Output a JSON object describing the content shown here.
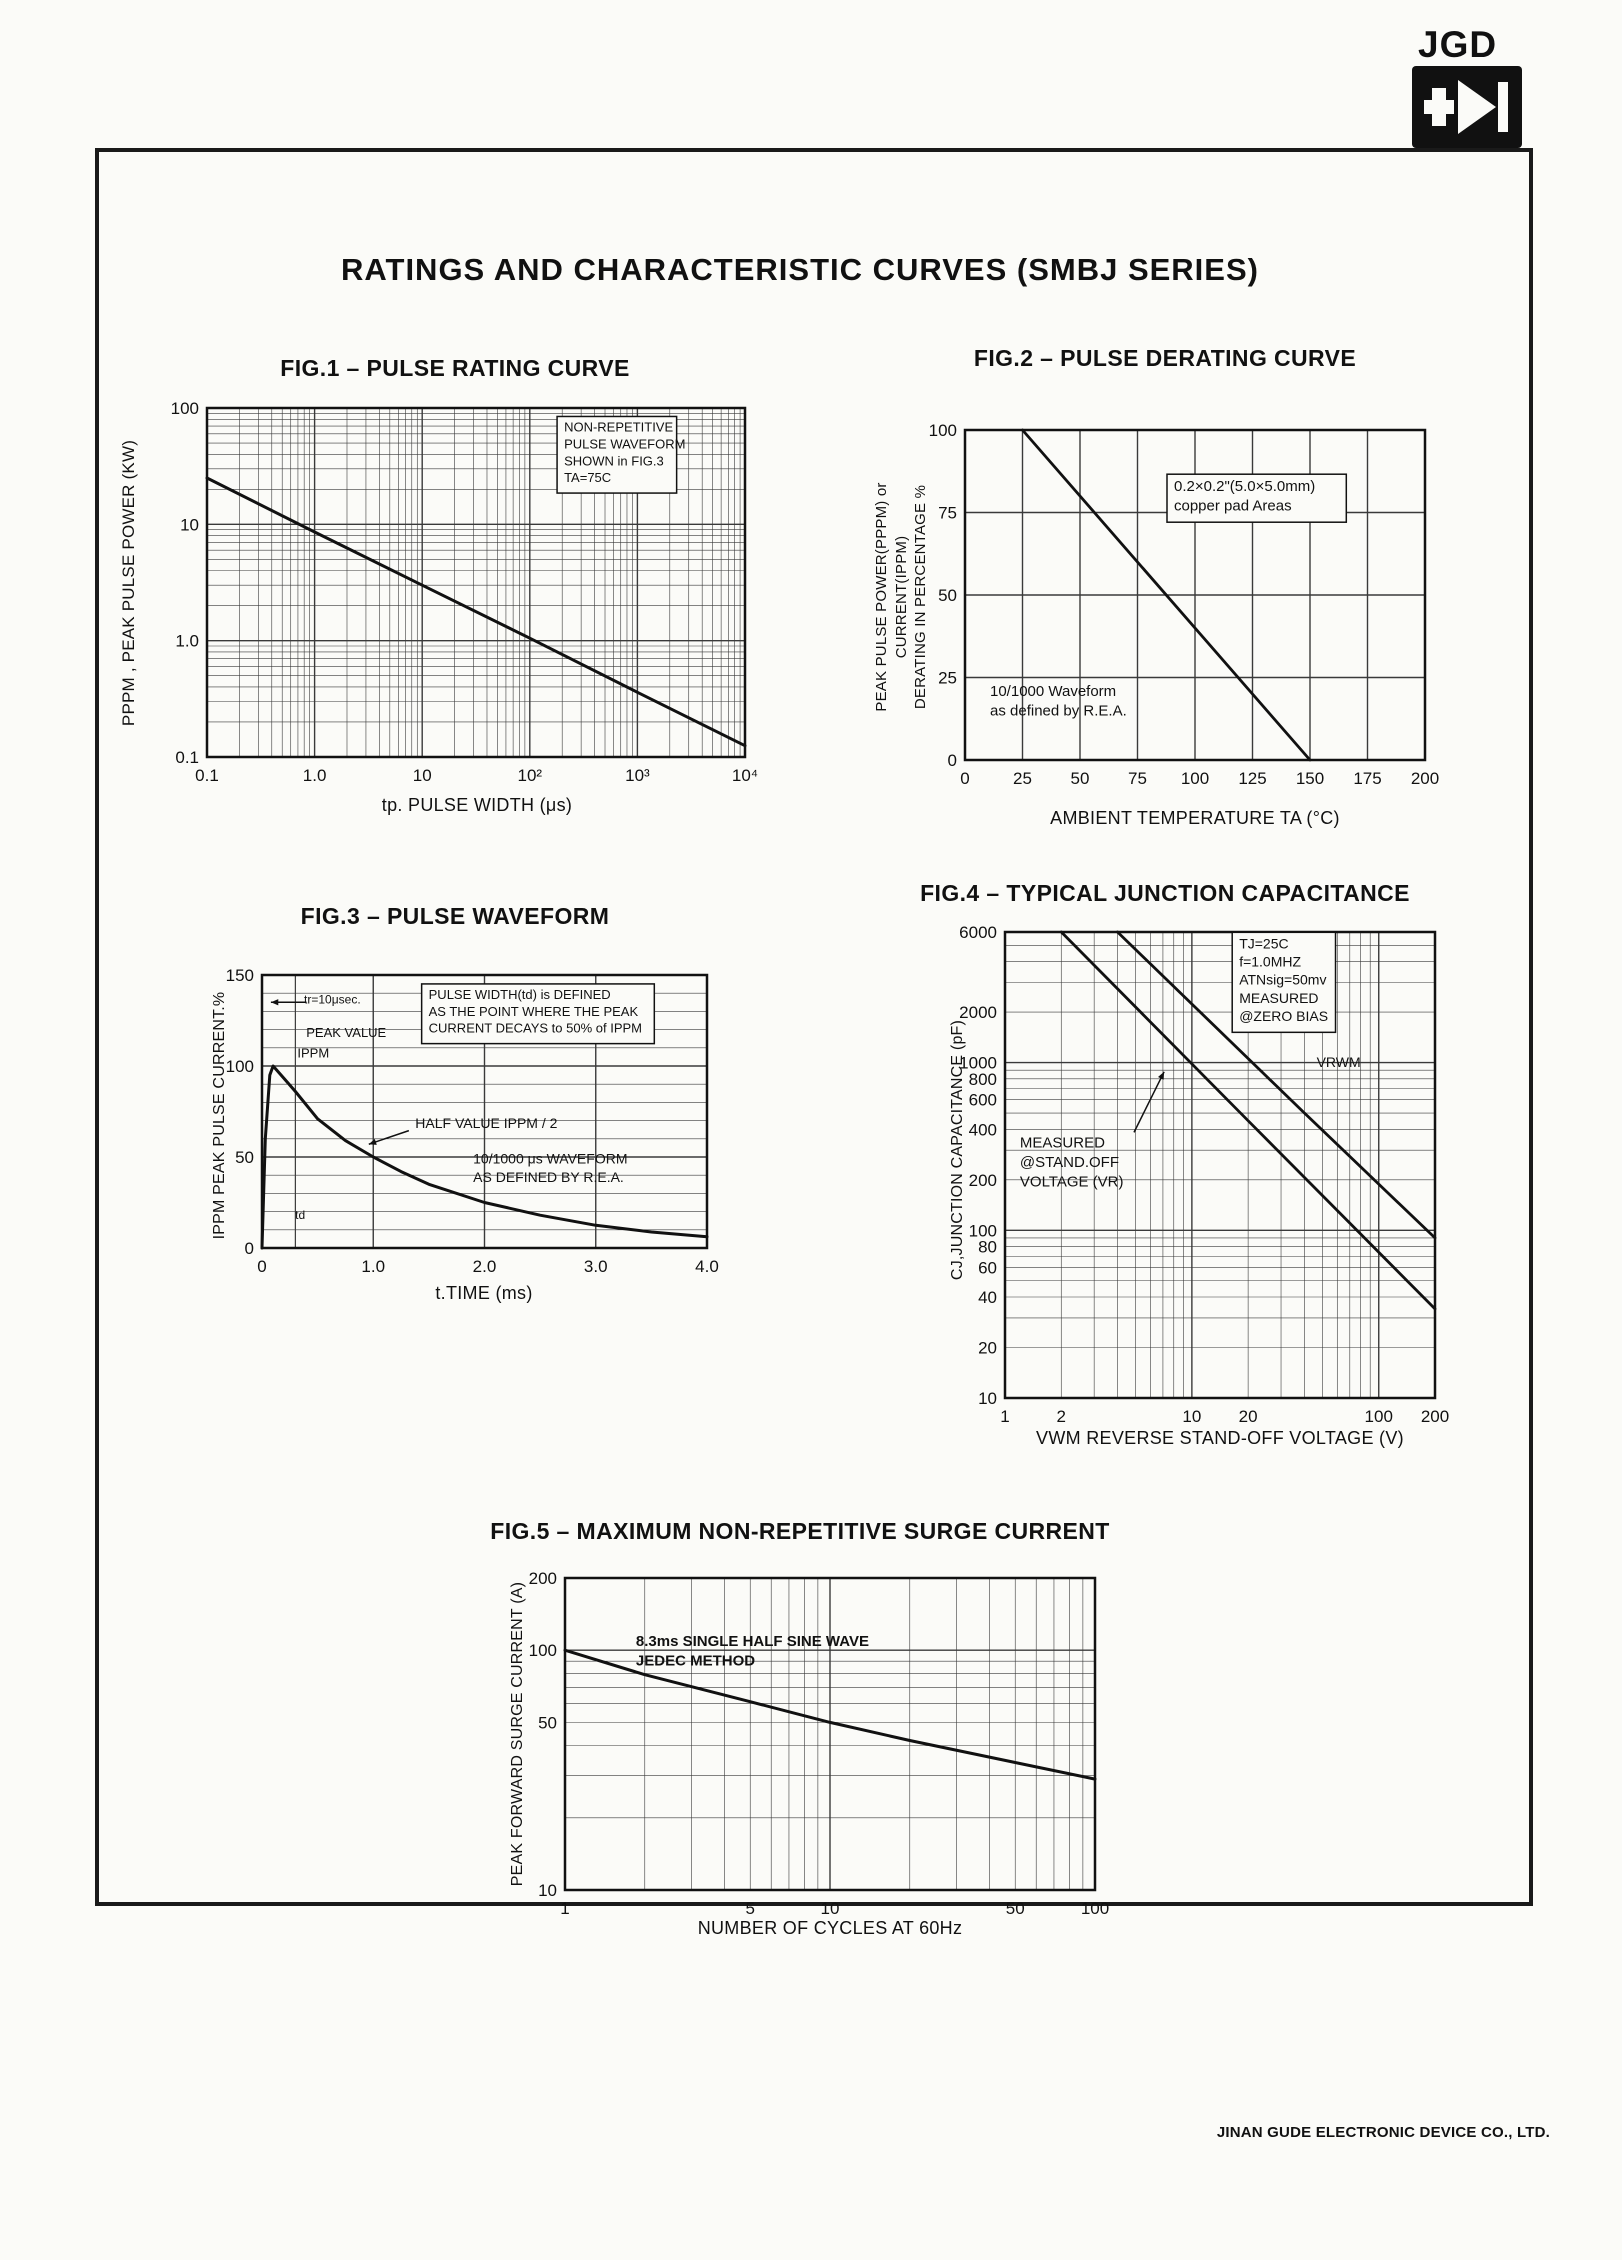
{
  "page": {
    "logo_text": "JGD",
    "title": "RATINGS AND CHARACTERISTIC CURVES (SMBJ SERIES)",
    "footer": "JINAN GUDE ELECTRONIC DEVICE CO., LTD."
  },
  "chart_data": [
    {
      "id": "fig1",
      "type": "line",
      "title": "FIG.1 – PULSE RATING CURVE",
      "xlabel": "tp. PULSE WIDTH (μs)",
      "ylabel": "PPPM , PEAK PULSE POWER (KW)",
      "xscale": "log",
      "xlim": [
        0.1,
        10000
      ],
      "yscale": "log",
      "ylim": [
        0.1,
        100
      ],
      "xticks": [
        {
          "v": 0.1,
          "label": "0.1"
        },
        {
          "v": 1,
          "label": "1.0"
        },
        {
          "v": 10,
          "label": "10"
        },
        {
          "v": 100,
          "label": "10²"
        },
        {
          "v": 1000,
          "label": "10³"
        },
        {
          "v": 10000,
          "label": "10⁴"
        }
      ],
      "yticks": [
        {
          "v": 100,
          "label": "100"
        },
        {
          "v": 10,
          "label": "10"
        },
        {
          "v": 1,
          "label": "1.0"
        },
        {
          "v": 0.1,
          "label": "0.1"
        }
      ],
      "series": [
        {
          "name": "non-repetitive pulse rating",
          "points": [
            [
              0.1,
              25
            ],
            [
              1,
              8.6
            ],
            [
              10,
              3.0
            ],
            [
              100,
              1.05
            ],
            [
              1000,
              0.36
            ],
            [
              10000,
              0.125
            ]
          ],
          "width": 3
        }
      ],
      "annotations": [
        {
          "lines": [
            "NON-REPETITIVE",
            "PULSE WAVEFORM",
            "SHOWN in FIG.3",
            "TA=75C"
          ],
          "x": 0.66,
          "y": 0.03,
          "box": true,
          "size": 13
        }
      ]
    },
    {
      "id": "fig2",
      "type": "line",
      "title": "FIG.2 – PULSE DERATING CURVE",
      "xlabel": "AMBIENT TEMPERATURE TA (°C)",
      "ylabel": "PEAK PULSE POWER(PPPM) or CURRENT(IPPM)\nDERATING IN PERCENTAGE %",
      "xscale": "linear",
      "xlim": [
        0,
        200
      ],
      "xgrid": 25,
      "yscale": "linear",
      "ylim": [
        0,
        100
      ],
      "ygrid": 25,
      "xticks": [
        {
          "v": 0,
          "label": "0"
        },
        {
          "v": 25,
          "label": "25"
        },
        {
          "v": 50,
          "label": "50"
        },
        {
          "v": 75,
          "label": "75"
        },
        {
          "v": 100,
          "label": "100"
        },
        {
          "v": 125,
          "label": "125"
        },
        {
          "v": 150,
          "label": "150"
        },
        {
          "v": 175,
          "label": "175"
        },
        {
          "v": 200,
          "label": "200"
        }
      ],
      "yticks": [
        {
          "v": 100,
          "label": "100"
        },
        {
          "v": 75,
          "label": "75"
        },
        {
          "v": 50,
          "label": "50"
        },
        {
          "v": 25,
          "label": "25"
        },
        {
          "v": 0,
          "label": "0"
        }
      ],
      "series": [
        {
          "name": "derating",
          "points": [
            [
              25,
              100
            ],
            [
              150,
              0
            ]
          ],
          "width": 2.8
        }
      ],
      "annotations": [
        {
          "lines": [
            "0.2×0.2\"(5.0×5.0mm)",
            "copper pad Areas"
          ],
          "x": 0.45,
          "y": 0.14,
          "box": true,
          "size": 15
        },
        {
          "lines": [
            "10/1000 Waveform",
            "as defined by R.E.A."
          ],
          "x": 0.05,
          "y": 0.76,
          "box": false,
          "size": 15
        }
      ]
    },
    {
      "id": "fig3",
      "type": "line",
      "title": "FIG.3 – PULSE WAVEFORM",
      "xlabel": "t.TIME (ms)",
      "ylabel": "IPPM PEAK PULSE CURRENT.%",
      "xscale": "linear",
      "xlim": [
        0,
        4
      ],
      "xgrid": null,
      "yscale": "linear",
      "ylim": [
        0,
        150
      ],
      "ygrid": 10,
      "vlines": [
        0.3
      ],
      "xticks": [
        {
          "v": 0,
          "label": "0"
        },
        {
          "v": 1,
          "label": "1.0"
        },
        {
          "v": 2,
          "label": "2.0"
        },
        {
          "v": 3,
          "label": "3.0"
        },
        {
          "v": 4,
          "label": "4.0"
        }
      ],
      "yticks": [
        {
          "v": 150,
          "label": "150"
        },
        {
          "v": 100,
          "label": "100"
        },
        {
          "v": 50,
          "label": "50"
        },
        {
          "v": 0,
          "label": "0"
        }
      ],
      "series": [
        {
          "name": "10/1000 waveform",
          "points": [
            [
              0,
              0
            ],
            [
              0.03,
              60
            ],
            [
              0.07,
              95
            ],
            [
              0.1,
              100
            ],
            [
              0.2,
              93
            ],
            [
              0.3,
              86
            ],
            [
              0.5,
              71
            ],
            [
              0.75,
              59
            ],
            [
              1.0,
              50
            ],
            [
              1.25,
              42
            ],
            [
              1.5,
              35
            ],
            [
              2.0,
              25
            ],
            [
              2.5,
              18
            ],
            [
              3.0,
              12.5
            ],
            [
              3.5,
              8.8
            ],
            [
              4.0,
              6.2
            ]
          ],
          "width": 3
        }
      ],
      "annotations": [
        {
          "lines": [
            "tr=10μsec."
          ],
          "x": 0.09,
          "y": 0.06,
          "box": false,
          "size": 12
        },
        {
          "lines": [
            "PEAK VALUE"
          ],
          "x": 0.095,
          "y": 0.18,
          "box": false,
          "size": 13
        },
        {
          "lines": [
            "IPPM"
          ],
          "x": 0.075,
          "y": 0.255,
          "box": false,
          "size": 13
        },
        {
          "lines": [
            "PULSE WIDTH(td) is DEFINED",
            "AS THE POINT WHERE THE PEAK",
            "CURRENT DECAYS to 50% of IPPM"
          ],
          "x": 0.37,
          "y": 0.04,
          "box": true,
          "size": 13
        },
        {
          "lines": [
            "HALF VALUE  IPPM / 2"
          ],
          "x": 0.34,
          "y": 0.51,
          "box": false,
          "size": 14
        },
        {
          "lines": [
            "10/1000 μs  WAVEFORM",
            "AS DEFINED BY R.E.A."
          ],
          "x": 0.47,
          "y": 0.64,
          "box": false,
          "size": 14
        },
        {
          "lines": [
            "td"
          ],
          "x": 0.07,
          "y": 0.85,
          "box": false,
          "size": 12
        }
      ],
      "arrows": [
        {
          "x1": 0.33,
          "y1": 0.57,
          "x2": 0.24,
          "y2": 0.62
        },
        {
          "x1": 0.1,
          "y1": 0.1,
          "x2": 0.02,
          "y2": 0.1
        }
      ]
    },
    {
      "id": "fig4",
      "type": "line",
      "title": "FIG.4 – TYPICAL JUNCTION CAPACITANCE",
      "xlabel": "VWM REVERSE STAND-OFF VOLTAGE (V)",
      "ylabel": "CJ,JUNCTION CAPACITANCE (pF)",
      "xscale": "log",
      "xlim": [
        1,
        200
      ],
      "yscale": "log",
      "ylim": [
        10,
        6000
      ],
      "xticks": [
        {
          "v": 1,
          "label": "1"
        },
        {
          "v": 2,
          "label": "2"
        },
        {
          "v": 10,
          "label": "10"
        },
        {
          "v": 20,
          "label": "20"
        },
        {
          "v": 100,
          "label": "100"
        },
        {
          "v": 200,
          "label": "200"
        }
      ],
      "yticks": [
        {
          "v": 6000,
          "label": "6000"
        },
        {
          "v": 2000,
          "label": "2000"
        },
        {
          "v": 1000,
          "label": "1000"
        },
        {
          "v": 800,
          "label": "800"
        },
        {
          "v": 600,
          "label": "600"
        },
        {
          "v": 400,
          "label": "400"
        },
        {
          "v": 200,
          "label": "200"
        },
        {
          "v": 100,
          "label": "100"
        },
        {
          "v": 80,
          "label": "80"
        },
        {
          "v": 60,
          "label": "60"
        },
        {
          "v": 40,
          "label": "40"
        },
        {
          "v": 20,
          "label": "20"
        },
        {
          "v": 10,
          "label": "10"
        }
      ],
      "series": [
        {
          "name": "measured at stand-off voltage",
          "points": [
            [
              2,
              6000
            ],
            [
              20,
              450
            ],
            [
              200,
              34
            ]
          ],
          "width": 2.8
        },
        {
          "name": "measured at zero bias",
          "points": [
            [
              4,
              6000
            ],
            [
              40,
              500
            ],
            [
              200,
              90
            ]
          ],
          "width": 2.8
        }
      ],
      "annotations": [
        {
          "lines": [
            "TJ=25C",
            "f=1.0MHZ",
            "ATNsig=50mv",
            "MEASURED",
            "@ZERO BIAS"
          ],
          "x": 0.54,
          "y": 0.005,
          "box": true,
          "size": 14
        },
        {
          "lines": [
            "VRWM"
          ],
          "x": 0.72,
          "y": 0.26,
          "box": false,
          "size": 14
        },
        {
          "lines": [
            "MEASURED",
            "@STAND.OFF",
            "VOLTAGE (VR)"
          ],
          "x": 0.03,
          "y": 0.43,
          "box": false,
          "size": 15
        }
      ],
      "arrows": [
        {
          "x1": 0.3,
          "y1": 0.43,
          "x2": 0.37,
          "y2": 0.3
        }
      ]
    },
    {
      "id": "fig5",
      "type": "line",
      "title": "FIG.5 – MAXIMUM NON-REPETITIVE SURGE CURRENT",
      "xlabel": "NUMBER OF CYCLES AT 60Hz",
      "ylabel": "PEAK FORWARD SURGE CURRENT (A)",
      "xscale": "log",
      "xlim": [
        1,
        100
      ],
      "yscale": "log",
      "ylim": [
        10,
        200
      ],
      "xticks": [
        {
          "v": 1,
          "label": "1"
        },
        {
          "v": 5,
          "label": "5"
        },
        {
          "v": 10,
          "label": "10"
        },
        {
          "v": 50,
          "label": "50"
        },
        {
          "v": 100,
          "label": "100"
        }
      ],
      "yticks": [
        {
          "v": 200,
          "label": "200"
        },
        {
          "v": 100,
          "label": "100"
        },
        {
          "v": 50,
          "label": "50"
        },
        {
          "v": 10,
          "label": "10"
        }
      ],
      "series": [
        {
          "name": "surge current",
          "points": [
            [
              1,
              100
            ],
            [
              2,
              79
            ],
            [
              5,
              61
            ],
            [
              10,
              50
            ],
            [
              20,
              42
            ],
            [
              50,
              34
            ],
            [
              100,
              29
            ]
          ],
          "width": 3
        }
      ],
      "annotations": [
        {
          "lines": [
            "8.3ms SINGLE HALF SINE WAVE",
            "JEDEC METHOD"
          ],
          "x": 0.13,
          "y": 0.17,
          "box": false,
          "size": 15,
          "bold": true
        }
      ]
    }
  ]
}
